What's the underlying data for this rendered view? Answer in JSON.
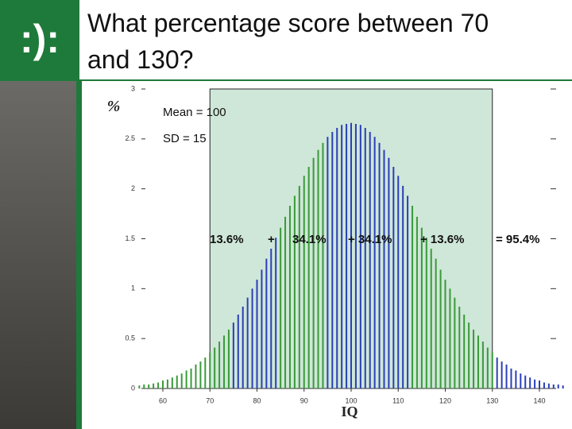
{
  "header": {
    "title_lines": [
      "What percentage score between 70",
      "and 130?"
    ]
  },
  "chart_data": {
    "type": "bar",
    "y_unit_label": "%",
    "xlabel": "IQ",
    "annotations": [
      "Mean = 100",
      "SD = 15",
      "13.6%",
      "+",
      "34.1%",
      "+ 34.1%",
      "+ 13.6%",
      "= 95.4%"
    ],
    "xlim": [
      54.5,
      145.5
    ],
    "xticks": [
      60,
      70,
      80,
      90,
      100,
      110,
      120,
      130,
      140
    ],
    "ylim": [
      0,
      3
    ],
    "yticks": [
      0,
      0.5,
      1,
      1.5,
      2,
      2.5,
      3
    ],
    "highlight_range": [
      70,
      130
    ],
    "highlight_color": "#cfe7d8",
    "series": [
      {
        "color": "#3a9a3a",
        "x": [
          55,
          56,
          57,
          58,
          59,
          60,
          61,
          62,
          63,
          64,
          65,
          66,
          67,
          68,
          69,
          70,
          71,
          72,
          73,
          74
        ],
        "values": [
          0.03,
          0.04,
          0.04,
          0.05,
          0.06,
          0.08,
          0.09,
          0.11,
          0.13,
          0.15,
          0.18,
          0.2,
          0.24,
          0.27,
          0.31,
          0.36,
          0.41,
          0.47,
          0.53,
          0.59
        ]
      },
      {
        "color": "#2b3fb8",
        "x": [
          75,
          76,
          77,
          78,
          79,
          80,
          81,
          82,
          83,
          84
        ],
        "values": [
          0.66,
          0.74,
          0.82,
          0.91,
          1.0,
          1.09,
          1.19,
          1.3,
          1.4,
          1.51
        ]
      },
      {
        "color": "#3a9a3a",
        "x": [
          85,
          86,
          87,
          88,
          89,
          90,
          91,
          92,
          93,
          94
        ],
        "values": [
          1.61,
          1.72,
          1.83,
          1.93,
          2.03,
          2.13,
          2.22,
          2.31,
          2.39,
          2.46
        ]
      },
      {
        "color": "#2b3fb8",
        "x": [
          95,
          96,
          97,
          98,
          99,
          100,
          101,
          102,
          103,
          104,
          105,
          106,
          107,
          108,
          109,
          110,
          111,
          112
        ],
        "values": [
          2.52,
          2.57,
          2.61,
          2.64,
          2.65,
          2.66,
          2.65,
          2.64,
          2.61,
          2.57,
          2.52,
          2.46,
          2.39,
          2.31,
          2.22,
          2.13,
          2.03,
          1.93
        ]
      },
      {
        "color": "#3a9a3a",
        "x": [
          113,
          114,
          115,
          116,
          117,
          118,
          119,
          120,
          121,
          122,
          123,
          124,
          125,
          126,
          127,
          128,
          129,
          130
        ],
        "values": [
          1.83,
          1.72,
          1.61,
          1.51,
          1.4,
          1.3,
          1.19,
          1.09,
          1.0,
          0.91,
          0.82,
          0.74,
          0.66,
          0.59,
          0.53,
          0.47,
          0.41,
          0.36
        ]
      },
      {
        "color": "#2b3fb8",
        "x": [
          131,
          132,
          133,
          134,
          135,
          136,
          137,
          138,
          139,
          140,
          141,
          142,
          143,
          144,
          145
        ],
        "values": [
          0.31,
          0.27,
          0.24,
          0.2,
          0.18,
          0.15,
          0.13,
          0.11,
          0.09,
          0.08,
          0.06,
          0.05,
          0.04,
          0.04,
          0.03
        ]
      }
    ]
  }
}
